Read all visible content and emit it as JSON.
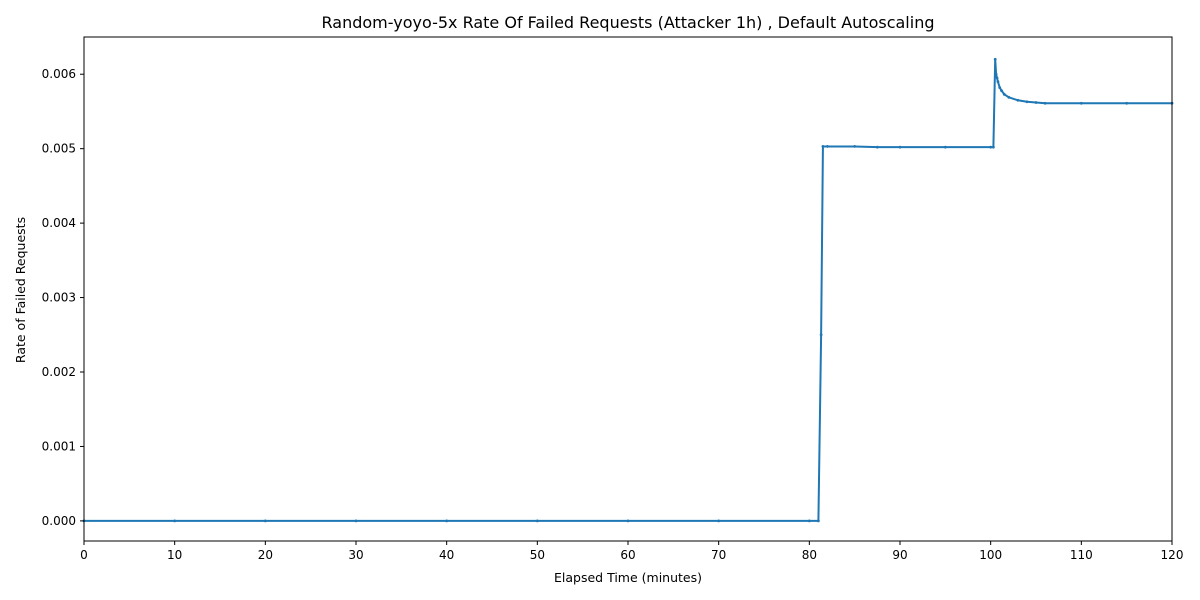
{
  "chart_data": {
    "type": "line",
    "title": "Random-yoyo-5x Rate Of Failed Requests (Attacker 1h) , Default Autoscaling",
    "xlabel": "Elapsed Time (minutes)",
    "ylabel": "Rate of Failed Requests",
    "xlim": [
      0,
      120
    ],
    "ylim": [
      -0.00027,
      0.0065
    ],
    "xticks": [
      0,
      10,
      20,
      30,
      40,
      50,
      60,
      70,
      80,
      90,
      100,
      110,
      120
    ],
    "yticks": [
      0.0,
      0.001,
      0.002,
      0.003,
      0.004,
      0.005,
      0.006
    ],
    "xtick_labels": [
      "0",
      "10",
      "20",
      "30",
      "40",
      "50",
      "60",
      "70",
      "80",
      "90",
      "100",
      "110",
      "120"
    ],
    "ytick_labels": [
      "0.000",
      "0.001",
      "0.002",
      "0.003",
      "0.004",
      "0.005",
      "0.006"
    ],
    "grid": false,
    "legend": "none",
    "colors": {
      "series": "#1f77b4"
    },
    "series": [
      {
        "name": "",
        "x": [
          0,
          10,
          20,
          30,
          40,
          50,
          60,
          70,
          80,
          81.0,
          81.3,
          81.5,
          82,
          85,
          87.5,
          90,
          95,
          100,
          100.3,
          100.5,
          100.6,
          100.7,
          100.8,
          101.0,
          101.2,
          101.5,
          102,
          103,
          104,
          105,
          106,
          110,
          115,
          120
        ],
        "y": [
          0.0,
          0.0,
          0.0,
          0.0,
          0.0,
          0.0,
          0.0,
          0.0,
          0.0,
          0.0,
          0.0025,
          0.00503,
          0.00503,
          0.00503,
          0.00502,
          0.00502,
          0.00502,
          0.00502,
          0.00502,
          0.0062,
          0.006,
          0.00595,
          0.0059,
          0.00582,
          0.00578,
          0.00573,
          0.00569,
          0.00565,
          0.00563,
          0.00562,
          0.00561,
          0.00561,
          0.00561,
          0.00561
        ]
      }
    ]
  }
}
